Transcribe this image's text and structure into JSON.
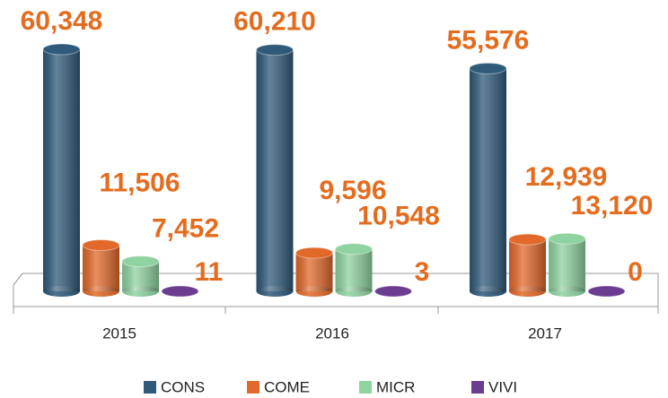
{
  "chart_data": {
    "type": "bar",
    "categories": [
      "2015",
      "2016",
      "2017"
    ],
    "series": [
      {
        "name": "CONS",
        "color": "#2f5a7a",
        "values": [
          60348,
          60210,
          55576
        ],
        "value_labels": [
          "60,348",
          "60,210",
          "55,576"
        ]
      },
      {
        "name": "COME",
        "color": "#e2692a",
        "values": [
          11506,
          9596,
          12939
        ],
        "value_labels": [
          "11,506",
          "9,596",
          "12,939"
        ]
      },
      {
        "name": "MICR",
        "color": "#8fd3a0",
        "values": [
          7452,
          10548,
          13120
        ],
        "value_labels": [
          "7,452",
          "10,548",
          "13,120"
        ]
      },
      {
        "name": "VIVI",
        "color": "#6a3d91",
        "values": [
          11,
          3,
          0
        ]
      }
    ],
    "legend": "bottom"
  }
}
